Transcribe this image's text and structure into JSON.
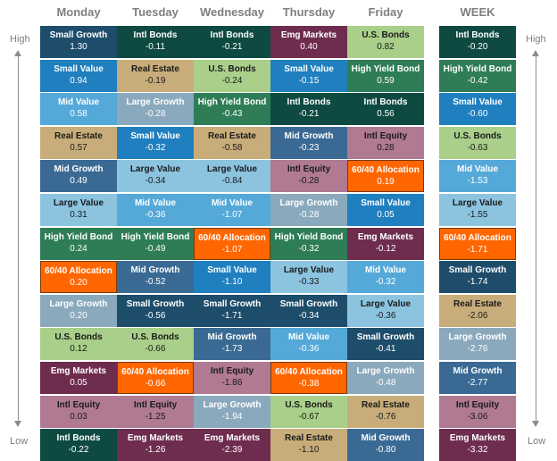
{
  "labels": {
    "high": "High",
    "low": "Low"
  },
  "columns": [
    {
      "day": "Monday",
      "cells": [
        {
          "name": "Small Growth",
          "value": "1.30"
        },
        {
          "name": "Small Value",
          "value": "0.94"
        },
        {
          "name": "Mid Value",
          "value": "0.58"
        },
        {
          "name": "Real Estate",
          "value": "0.57"
        },
        {
          "name": "Mid Growth",
          "value": "0.49"
        },
        {
          "name": "Large Value",
          "value": "0.31"
        },
        {
          "name": "High Yield Bond",
          "value": "0.24"
        },
        {
          "name": "60/40 Allocation",
          "value": "0.20"
        },
        {
          "name": "Large Growth",
          "value": "0.20"
        },
        {
          "name": "U.S. Bonds",
          "value": "0.12"
        },
        {
          "name": "Emg Markets",
          "value": "0.05"
        },
        {
          "name": "Intl Equity",
          "value": "0.03"
        },
        {
          "name": "Intl Bonds",
          "value": "-0.22"
        }
      ]
    },
    {
      "day": "Tuesday",
      "cells": [
        {
          "name": "Intl Bonds",
          "value": "-0.11"
        },
        {
          "name": "Real Estate",
          "value": "-0.19"
        },
        {
          "name": "Large Growth",
          "value": "-0.28"
        },
        {
          "name": "Small Value",
          "value": "-0.32"
        },
        {
          "name": "Large Value",
          "value": "-0.34"
        },
        {
          "name": "Mid Value",
          "value": "-0.36"
        },
        {
          "name": "High Yield Bond",
          "value": "-0.49"
        },
        {
          "name": "Mid Growth",
          "value": "-0.52"
        },
        {
          "name": "Small Growth",
          "value": "-0.56"
        },
        {
          "name": "U.S. Bonds",
          "value": "-0.66"
        },
        {
          "name": "60/40 Allocation",
          "value": "-0.66"
        },
        {
          "name": "Intl Equity",
          "value": "-1.25"
        },
        {
          "name": "Emg Markets",
          "value": "-1.26"
        }
      ]
    },
    {
      "day": "Wednesday",
      "cells": [
        {
          "name": "Intl Bonds",
          "value": "-0.21"
        },
        {
          "name": "U.S. Bonds",
          "value": "-0.24"
        },
        {
          "name": "High Yield Bond",
          "value": "-0.43"
        },
        {
          "name": "Real Estate",
          "value": "-0.58"
        },
        {
          "name": "Large Value",
          "value": "-0.84"
        },
        {
          "name": "Mid Value",
          "value": "-1.07"
        },
        {
          "name": "60/40 Allocation",
          "value": "-1.07"
        },
        {
          "name": "Small Value",
          "value": "-1.10"
        },
        {
          "name": "Small Growth",
          "value": "-1.71"
        },
        {
          "name": "Mid Growth",
          "value": "-1.73"
        },
        {
          "name": "Intl Equity",
          "value": "-1.86"
        },
        {
          "name": "Large Growth",
          "value": "-1.94"
        },
        {
          "name": "Emg Markets",
          "value": "-2.39"
        }
      ]
    },
    {
      "day": "Thursday",
      "cells": [
        {
          "name": "Emg Markets",
          "value": "0.40"
        },
        {
          "name": "Small Value",
          "value": "-0.15"
        },
        {
          "name": "Intl Bonds",
          "value": "-0.21"
        },
        {
          "name": "Mid Growth",
          "value": "-0.23"
        },
        {
          "name": "Intl Equity",
          "value": "-0.28"
        },
        {
          "name": "Large Growth",
          "value": "-0.28"
        },
        {
          "name": "High Yield Bond",
          "value": "-0.32"
        },
        {
          "name": "Large Value",
          "value": "-0.33"
        },
        {
          "name": "Small Growth",
          "value": "-0.34"
        },
        {
          "name": "Mid Value",
          "value": "-0.36"
        },
        {
          "name": "60/40 Allocation",
          "value": "-0.38"
        },
        {
          "name": "U.S. Bonds",
          "value": "-0.67"
        },
        {
          "name": "Real Estate",
          "value": "-1.10"
        }
      ]
    },
    {
      "day": "Friday",
      "cells": [
        {
          "name": "U.S. Bonds",
          "value": "0.82"
        },
        {
          "name": "High Yield Bond",
          "value": "0.59"
        },
        {
          "name": "Intl Bonds",
          "value": "0.56"
        },
        {
          "name": "Intl Equity",
          "value": "0.28"
        },
        {
          "name": "60/40 Allocation",
          "value": "0.19"
        },
        {
          "name": "Small Value",
          "value": "0.05"
        },
        {
          "name": "Emg Markets",
          "value": "-0.12"
        },
        {
          "name": "Mid Value",
          "value": "-0.32"
        },
        {
          "name": "Large Value",
          "value": "-0.36"
        },
        {
          "name": "Small Growth",
          "value": "-0.41"
        },
        {
          "name": "Large Growth",
          "value": "-0.48"
        },
        {
          "name": "Real Estate",
          "value": "-0.76"
        },
        {
          "name": "Mid Growth",
          "value": "-0.80"
        }
      ]
    },
    {
      "day": "WEEK",
      "cells": [
        {
          "name": "Intl Bonds",
          "value": "-0.20"
        },
        {
          "name": "High Yield Bond",
          "value": "-0.42"
        },
        {
          "name": "Small Value",
          "value": "-0.60"
        },
        {
          "name": "U.S. Bonds",
          "value": "-0.63"
        },
        {
          "name": "Mid Value",
          "value": "-1.53"
        },
        {
          "name": "Large Value",
          "value": "-1.55"
        },
        {
          "name": "60/40 Allocation",
          "value": "-1.71"
        },
        {
          "name": "Small Growth",
          "value": "-1.74"
        },
        {
          "name": "Real Estate",
          "value": "-2.06"
        },
        {
          "name": "Large Growth",
          "value": "-2.76"
        },
        {
          "name": "Mid Growth",
          "value": "-2.77"
        },
        {
          "name": "Intl Equity",
          "value": "-3.06"
        },
        {
          "name": "Emg Markets",
          "value": "-3.32"
        }
      ]
    }
  ],
  "category_colors": {
    "Small Growth": "#1e4d6b",
    "Small Value": "#1f7fbf",
    "Mid Value": "#55a9d9",
    "Real Estate": "#c8ad7a",
    "Mid Growth": "#3a6a94",
    "Large Value": "#8cc4e0",
    "High Yield Bond": "#2e7d56",
    "60/40 Allocation": "#ff6600",
    "Large Growth": "#8aa9bd",
    "U.S. Bonds": "#a9cf8a",
    "Emg Markets": "#6e2c4e",
    "Intl Equity": "#b07a92",
    "Intl Bonds": "#0e4a42"
  },
  "dark_text_categories": [
    "Real Estate",
    "U.S. Bonds",
    "Large Value",
    "Intl Equity"
  ],
  "chart_data": {
    "type": "table",
    "columns": [
      "Monday",
      "Tuesday",
      "Wednesday",
      "Thursday",
      "Friday",
      "WEEK"
    ],
    "rank_order": "High to Low",
    "rows": [
      {
        "Monday": [
          "Small Growth",
          1.3
        ],
        "Tuesday": [
          "Intl Bonds",
          -0.11
        ],
        "Wednesday": [
          "Intl Bonds",
          -0.21
        ],
        "Thursday": [
          "Emg Markets",
          0.4
        ],
        "Friday": [
          "U.S. Bonds",
          0.82
        ],
        "WEEK": [
          "Intl Bonds",
          -0.2
        ]
      },
      {
        "Monday": [
          "Small Value",
          0.94
        ],
        "Tuesday": [
          "Real Estate",
          -0.19
        ],
        "Wednesday": [
          "U.S. Bonds",
          -0.24
        ],
        "Thursday": [
          "Small Value",
          -0.15
        ],
        "Friday": [
          "High Yield Bond",
          0.59
        ],
        "WEEK": [
          "High Yield Bond",
          -0.42
        ]
      },
      {
        "Monday": [
          "Mid Value",
          0.58
        ],
        "Tuesday": [
          "Large Growth",
          -0.28
        ],
        "Wednesday": [
          "High Yield Bond",
          -0.43
        ],
        "Thursday": [
          "Intl Bonds",
          -0.21
        ],
        "Friday": [
          "Intl Bonds",
          0.56
        ],
        "WEEK": [
          "Small Value",
          -0.6
        ]
      },
      {
        "Monday": [
          "Real Estate",
          0.57
        ],
        "Tuesday": [
          "Small Value",
          -0.32
        ],
        "Wednesday": [
          "Real Estate",
          -0.58
        ],
        "Thursday": [
          "Mid Growth",
          -0.23
        ],
        "Friday": [
          "Intl Equity",
          0.28
        ],
        "WEEK": [
          "U.S. Bonds",
          -0.63
        ]
      },
      {
        "Monday": [
          "Mid Growth",
          0.49
        ],
        "Tuesday": [
          "Large Value",
          -0.34
        ],
        "Wednesday": [
          "Large Value",
          -0.84
        ],
        "Thursday": [
          "Intl Equity",
          -0.28
        ],
        "Friday": [
          "60/40 Allocation",
          0.19
        ],
        "WEEK": [
          "Mid Value",
          -1.53
        ]
      },
      {
        "Monday": [
          "Large Value",
          0.31
        ],
        "Tuesday": [
          "Mid Value",
          -0.36
        ],
        "Wednesday": [
          "Mid Value",
          -1.07
        ],
        "Thursday": [
          "Large Growth",
          -0.28
        ],
        "Friday": [
          "Small Value",
          0.05
        ],
        "WEEK": [
          "Large Value",
          -1.55
        ]
      },
      {
        "Monday": [
          "High Yield Bond",
          0.24
        ],
        "Tuesday": [
          "High Yield Bond",
          -0.49
        ],
        "Wednesday": [
          "60/40 Allocation",
          -1.07
        ],
        "Thursday": [
          "High Yield Bond",
          -0.32
        ],
        "Friday": [
          "Emg Markets",
          -0.12
        ],
        "WEEK": [
          "60/40 Allocation",
          -1.71
        ]
      },
      {
        "Monday": [
          "60/40 Allocation",
          0.2
        ],
        "Tuesday": [
          "Mid Growth",
          -0.52
        ],
        "Wednesday": [
          "Small Value",
          -1.1
        ],
        "Thursday": [
          "Large Value",
          -0.33
        ],
        "Friday": [
          "Mid Value",
          -0.32
        ],
        "WEEK": [
          "Small Growth",
          -1.74
        ]
      },
      {
        "Monday": [
          "Large Growth",
          0.2
        ],
        "Tuesday": [
          "Small Growth",
          -0.56
        ],
        "Wednesday": [
          "Small Growth",
          -1.71
        ],
        "Thursday": [
          "Small Growth",
          -0.34
        ],
        "Friday": [
          "Large Value",
          -0.36
        ],
        "WEEK": [
          "Real Estate",
          -2.06
        ]
      },
      {
        "Monday": [
          "U.S. Bonds",
          0.12
        ],
        "Tuesday": [
          "U.S. Bonds",
          -0.66
        ],
        "Wednesday": [
          "Mid Growth",
          -1.73
        ],
        "Thursday": [
          "Mid Value",
          -0.36
        ],
        "Friday": [
          "Small Growth",
          -0.41
        ],
        "WEEK": [
          "Large Growth",
          -2.76
        ]
      },
      {
        "Monday": [
          "Emg Markets",
          0.05
        ],
        "Tuesday": [
          "60/40 Allocation",
          -0.66
        ],
        "Wednesday": [
          "Intl Equity",
          -1.86
        ],
        "Thursday": [
          "60/40 Allocation",
          -0.38
        ],
        "Friday": [
          "Large Growth",
          -0.48
        ],
        "WEEK": [
          "Mid Growth",
          -2.77
        ]
      },
      {
        "Monday": [
          "Intl Equity",
          0.03
        ],
        "Tuesday": [
          "Intl Equity",
          -1.25
        ],
        "Wednesday": [
          "Large Growth",
          -1.94
        ],
        "Thursday": [
          "U.S. Bonds",
          -0.67
        ],
        "Friday": [
          "Real Estate",
          -0.76
        ],
        "WEEK": [
          "Intl Equity",
          -3.06
        ]
      },
      {
        "Monday": [
          "Intl Bonds",
          -0.22
        ],
        "Tuesday": [
          "Emg Markets",
          -1.26
        ],
        "Wednesday": [
          "Emg Markets",
          -2.39
        ],
        "Thursday": [
          "Real Estate",
          -1.1
        ],
        "Friday": [
          "Mid Growth",
          -0.8
        ],
        "WEEK": [
          "Emg Markets",
          -3.32
        ]
      }
    ],
    "highlight": "60/40 Allocation"
  }
}
